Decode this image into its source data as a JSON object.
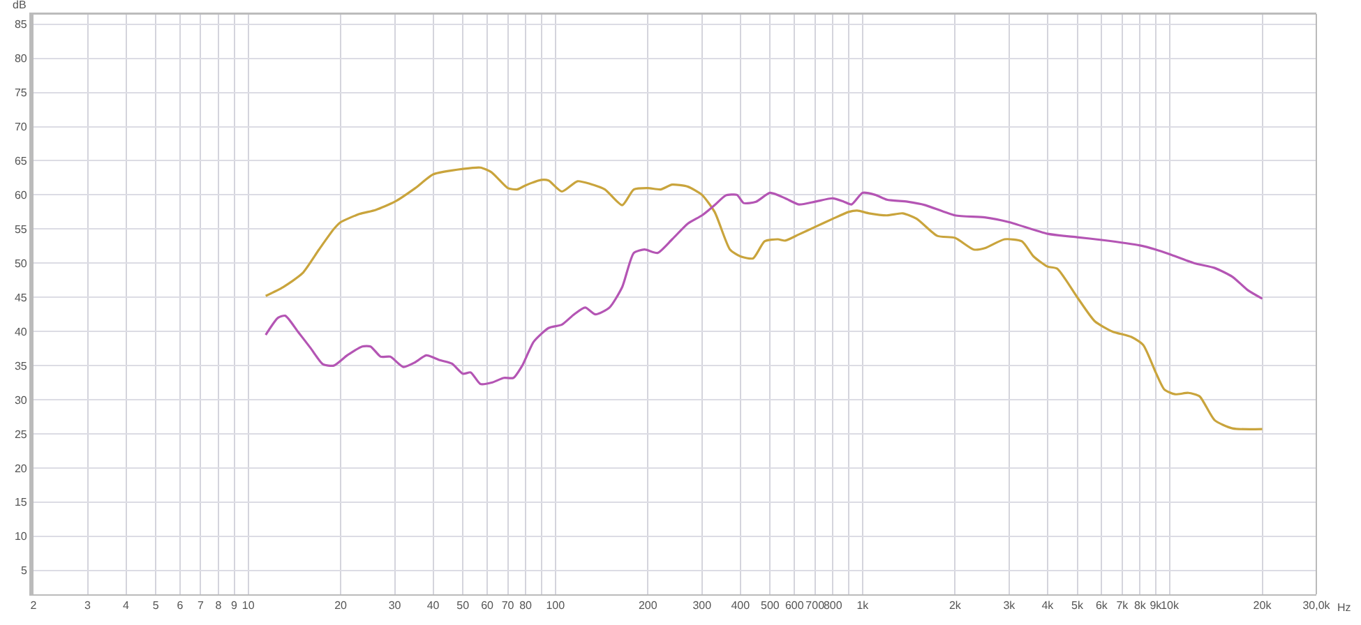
{
  "chart_data": {
    "type": "line",
    "xlabel": "Hz",
    "ylabel": "dB",
    "log": "x",
    "grid": true,
    "line_style": "solid",
    "marker": "none",
    "xlim": [
      2,
      30000
    ],
    "ylim": [
      1.5,
      86.5
    ],
    "xticks": [
      2,
      3,
      4,
      5,
      6,
      7,
      8,
      9,
      10,
      20,
      30,
      40,
      50,
      60,
      70,
      80,
      {
        "value": 90,
        "label": null
      },
      100,
      200,
      300,
      400,
      500,
      600,
      700,
      800,
      {
        "value": 900,
        "label": null
      },
      {
        "value": 1000,
        "label": "1k"
      },
      {
        "value": 2000,
        "label": "2k"
      },
      {
        "value": 3000,
        "label": "3k"
      },
      {
        "value": 4000,
        "label": "4k"
      },
      {
        "value": 5000,
        "label": "5k"
      },
      {
        "value": 6000,
        "label": "6k"
      },
      {
        "value": 7000,
        "label": "7k"
      },
      {
        "value": 8000,
        "label": "8k"
      },
      {
        "value": 9000,
        "label": "9k"
      },
      {
        "value": 10000,
        "label": "10k"
      },
      {
        "value": 20000,
        "label": "20k"
      },
      {
        "value": 30000,
        "label": "30,0k"
      }
    ],
    "yticks": [
      5,
      10,
      15,
      20,
      25,
      30,
      35,
      40,
      45,
      50,
      55,
      60,
      65,
      70,
      75,
      80,
      85
    ],
    "series": [
      {
        "color": "#c9a43c",
        "x": [
          11.4,
          13,
          15,
          17,
          19,
          20,
          23,
          26,
          30,
          35,
          40,
          50,
          57,
          62,
          70,
          75,
          80,
          90,
          95,
          105,
          118,
          130,
          145,
          165,
          180,
          200,
          220,
          240,
          270,
          300,
          330,
          370,
          400,
          440,
          480,
          530,
          560,
          620,
          700,
          800,
          900,
          960,
          1050,
          1200,
          1350,
          1500,
          1750,
          2000,
          2300,
          2500,
          2900,
          3300,
          3600,
          4000,
          4300,
          5000,
          5700,
          6500,
          7500,
          8200,
          9000,
          9600,
          10400,
          11500,
          12500,
          14000,
          16000,
          20000
        ],
        "values": [
          45.2,
          46.5,
          48.5,
          52,
          55,
          56,
          57.2,
          57.8,
          59,
          61,
          63,
          63.8,
          64,
          63.3,
          61,
          60.8,
          61.4,
          62.2,
          62.1,
          60.5,
          62,
          61.6,
          60.8,
          58.5,
          60.8,
          61,
          60.8,
          61.5,
          61.2,
          60,
          57.5,
          52,
          51,
          50.7,
          53.2,
          53.5,
          53.3,
          54.2,
          55.3,
          56.5,
          57.5,
          57.7,
          57.3,
          57,
          57.3,
          56.5,
          54,
          53.7,
          52,
          52.2,
          53.5,
          53.2,
          51,
          49.5,
          49.2,
          45,
          41.5,
          40,
          39.2,
          38,
          34,
          31.5,
          30.8,
          31,
          30.5,
          27,
          25.8,
          25.7
        ]
      },
      {
        "color": "#b455b4",
        "x": [
          11.4,
          12.5,
          13.2,
          14.5,
          16,
          17.5,
          19,
          21,
          23.5,
          25,
          27,
          29,
          32,
          35,
          38,
          42,
          46,
          50,
          53,
          57,
          62,
          68,
          73,
          78,
          85,
          95,
          105,
          115,
          125,
          135,
          150,
          165,
          180,
          195,
          215,
          240,
          270,
          300,
          330,
          358,
          390,
          410,
          450,
          500,
          560,
          620,
          700,
          800,
          870,
          920,
          1000,
          1100,
          1200,
          1400,
          1600,
          2000,
          2500,
          3000,
          4000,
          5000,
          6000,
          8000,
          9000,
          10000,
          12000,
          14000,
          16000,
          18000,
          20000
        ],
        "values": [
          39.5,
          42,
          42.3,
          40,
          37.5,
          35.2,
          35,
          36.5,
          37.8,
          37.8,
          36.3,
          36.3,
          34.8,
          35.5,
          36.5,
          35.8,
          35.3,
          33.8,
          34,
          32.3,
          32.5,
          33.2,
          33.2,
          35,
          38.5,
          40.5,
          41,
          42.5,
          43.5,
          42.5,
          43.5,
          46.5,
          51.5,
          52,
          51.5,
          53.5,
          55.8,
          57,
          58.5,
          59.9,
          60,
          58.8,
          59,
          60.3,
          59.5,
          58.6,
          59,
          59.5,
          59,
          58.6,
          60.3,
          60,
          59.3,
          59,
          58.5,
          57,
          56.7,
          56,
          54.3,
          53.8,
          53.4,
          52.6,
          52,
          51.3,
          50,
          49.3,
          48,
          46,
          44.8
        ]
      }
    ]
  }
}
